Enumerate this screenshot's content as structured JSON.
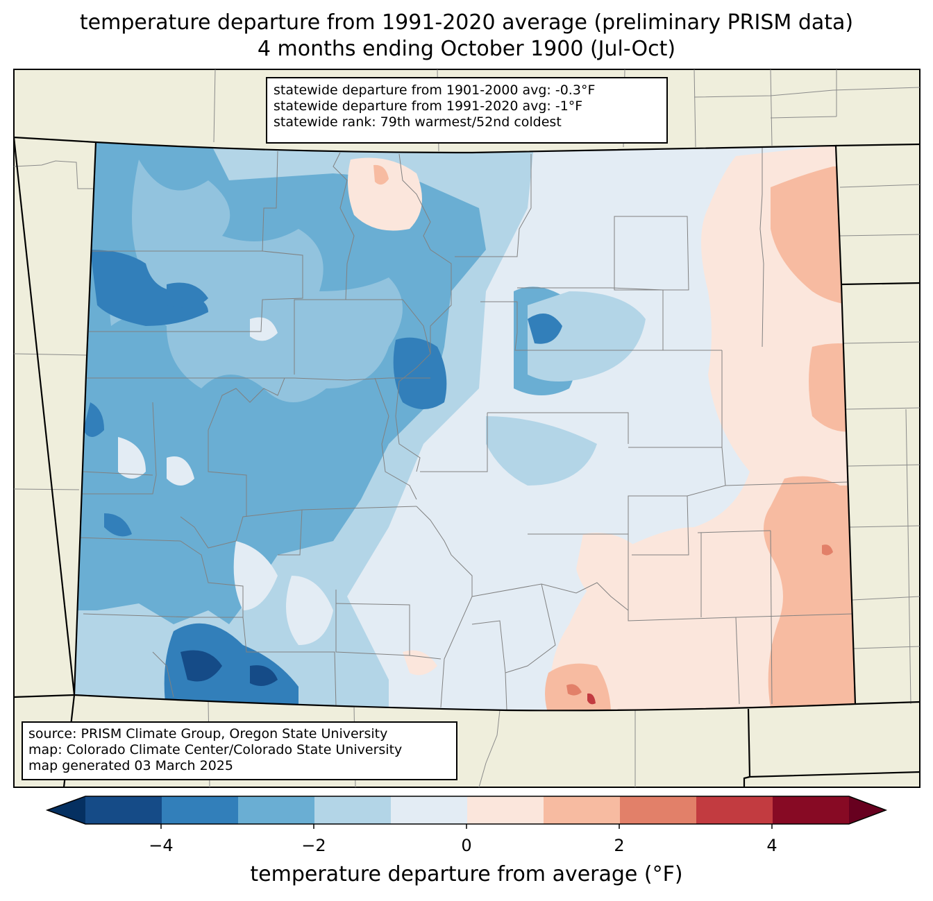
{
  "title": {
    "line1": "temperature departure from 1991-2020 average (preliminary PRISM data)",
    "line2": "4 months ending October 1900 (Jul-Oct)"
  },
  "stats": {
    "line1": "statewide departure from 1901-2000 avg: -0.3°F",
    "line2": "statewide departure from 1991-2020 avg: -1°F",
    "line3": "statewide rank: 79th warmest/52nd coldest"
  },
  "source": {
    "line1": "source: PRISM Climate Group, Oregon State University",
    "line2": "map: Colorado Climate Center/Colorado State University",
    "line3": "map generated 03 March 2025"
  },
  "colorbar": {
    "label": "temperature departure from average (°F)",
    "ticks": [
      "−4",
      "−2",
      "0",
      "2",
      "4"
    ],
    "bins": [
      {
        "range": "< -5",
        "color": "#053061"
      },
      {
        "range": "-5 to -4",
        "color": "#154b87"
      },
      {
        "range": "-4 to -3",
        "color": "#327fba"
      },
      {
        "range": "-3 to -2",
        "color": "#6aaed3"
      },
      {
        "range": "-2 to -1",
        "color": "#b3d5e7"
      },
      {
        "range": "-1 to 0",
        "color": "#e3ecf4"
      },
      {
        "range": "0 to 1",
        "color": "#fbe6dc"
      },
      {
        "range": "1 to 2",
        "color": "#f7bba1"
      },
      {
        "range": "2 to 3",
        "color": "#e28069"
      },
      {
        "range": "3 to 4",
        "color": "#c23b40"
      },
      {
        "range": "4 to 5",
        "color": "#870a24"
      },
      {
        "range": "> 5",
        "color": "#67001f"
      }
    ]
  },
  "colors": {
    "land_background": "#efeedc",
    "county_lines": "#808080",
    "state_lines": "#000000"
  }
}
